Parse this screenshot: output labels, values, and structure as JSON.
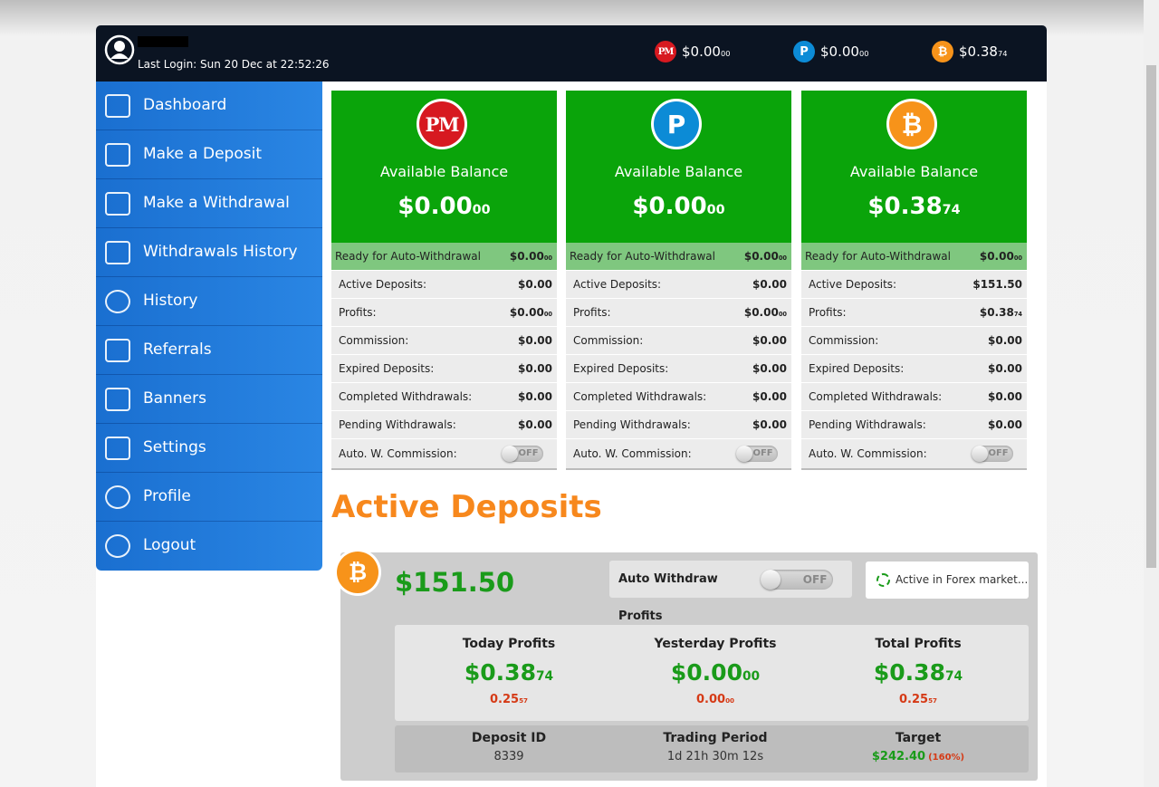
{
  "header": {
    "last_login": "Last Login: Sun 20 Dec at 22:52:26",
    "balances": [
      {
        "icon": "PM",
        "amount": {
          "main": "$0.00",
          "cents": "00"
        }
      },
      {
        "icon": "P",
        "amount": {
          "main": "$0.00",
          "cents": "00"
        }
      },
      {
        "icon": "₿",
        "amount": {
          "main": "$0.38",
          "cents": "74"
        }
      }
    ]
  },
  "sidebar": {
    "items": [
      "Dashboard",
      "Make a Deposit",
      "Make a Withdrawal",
      "Withdrawals History",
      "History",
      "Referrals",
      "Banners",
      "Settings",
      "Profile",
      "Logout"
    ]
  },
  "cards": [
    {
      "icon": "PM",
      "title": "Available Balance",
      "balance": {
        "main": "$0.00",
        "cents": "00"
      },
      "ready": {
        "label": "Ready for Auto-Withdrawal",
        "value": {
          "main": "$0.00",
          "cents": "00"
        }
      },
      "rows": [
        {
          "label": "Active Deposits:",
          "value": {
            "main": "$0.00"
          }
        },
        {
          "label": "Profits:",
          "value": {
            "main": "$0.00",
            "cents": "00"
          }
        },
        {
          "label": "Commission:",
          "value": {
            "main": "$0.00"
          }
        },
        {
          "label": "Expired Deposits:",
          "value": {
            "main": "$0.00"
          }
        },
        {
          "label": "Completed Withdrawals:",
          "value": {
            "main": "$0.00"
          }
        },
        {
          "label": "Pending Withdrawals:",
          "value": {
            "main": "$0.00"
          }
        }
      ],
      "toggle": {
        "label": "Auto. W. Commission:",
        "state": "OFF"
      }
    },
    {
      "icon": "P",
      "title": "Available Balance",
      "balance": {
        "main": "$0.00",
        "cents": "00"
      },
      "ready": {
        "label": "Ready for Auto-Withdrawal",
        "value": {
          "main": "$0.00",
          "cents": "00"
        }
      },
      "rows": [
        {
          "label": "Active Deposits:",
          "value": {
            "main": "$0.00"
          }
        },
        {
          "label": "Profits:",
          "value": {
            "main": "$0.00",
            "cents": "00"
          }
        },
        {
          "label": "Commission:",
          "value": {
            "main": "$0.00"
          }
        },
        {
          "label": "Expired Deposits:",
          "value": {
            "main": "$0.00"
          }
        },
        {
          "label": "Completed Withdrawals:",
          "value": {
            "main": "$0.00"
          }
        },
        {
          "label": "Pending Withdrawals:",
          "value": {
            "main": "$0.00"
          }
        }
      ],
      "toggle": {
        "label": "Auto. W. Commission:",
        "state": "OFF"
      }
    },
    {
      "icon": "₿",
      "title": "Available Balance",
      "balance": {
        "main": "$0.38",
        "cents": "74"
      },
      "ready": {
        "label": "Ready for Auto-Withdrawal",
        "value": {
          "main": "$0.00",
          "cents": "00"
        }
      },
      "rows": [
        {
          "label": "Active Deposits:",
          "value": {
            "main": "$151.50"
          }
        },
        {
          "label": "Profits:",
          "value": {
            "main": "$0.38",
            "cents": "74"
          }
        },
        {
          "label": "Commission:",
          "value": {
            "main": "$0.00"
          }
        },
        {
          "label": "Expired Deposits:",
          "value": {
            "main": "$0.00"
          }
        },
        {
          "label": "Completed Withdrawals:",
          "value": {
            "main": "$0.00"
          }
        },
        {
          "label": "Pending Withdrawals:",
          "value": {
            "main": "$0.00"
          }
        }
      ],
      "toggle": {
        "label": "Auto. W. Commission:",
        "state": "OFF"
      }
    }
  ],
  "section_title": "Active Deposits",
  "deposit": {
    "icon": "₿",
    "amount": "$151.50",
    "auto_withdraw": {
      "label": "Auto Withdraw Profits",
      "state": "OFF"
    },
    "status": "Active in Forex market...",
    "profits": [
      {
        "title": "Today Profits",
        "amount": {
          "main": "$0.38",
          "cents": "74"
        },
        "percent": {
          "main": "0.25",
          "cents": "57",
          "unit": "%"
        }
      },
      {
        "title": "Yesterday Profits",
        "amount": {
          "main": "$0.00",
          "cents": "00"
        },
        "percent": {
          "main": "0.00",
          "cents": "00",
          "unit": "%"
        }
      },
      {
        "title": "Total Profits",
        "amount": {
          "main": "$0.38",
          "cents": "74"
        },
        "percent": {
          "main": "0.25",
          "cents": "57",
          "unit": "%"
        }
      }
    ],
    "details": [
      {
        "label": "Deposit ID",
        "value": "8339"
      },
      {
        "label": "Trading Period",
        "value": "1d 21h 30m 12s"
      },
      {
        "label": "Target",
        "value": "$242.40",
        "note": "(160%)"
      }
    ]
  }
}
